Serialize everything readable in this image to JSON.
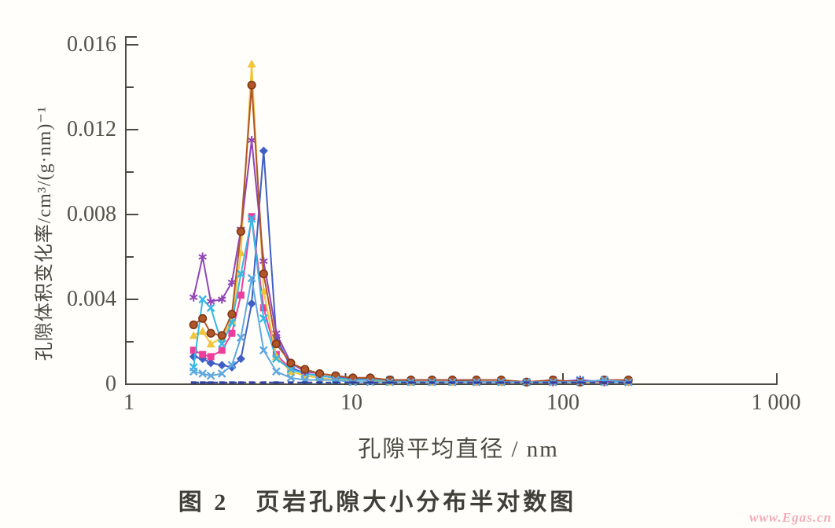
{
  "figure": {
    "caption": "图 2　页岩孔隙大小分布半对数图"
  },
  "watermark": {
    "text": "www.Egas.cn",
    "color": "#f3aab6"
  },
  "chart_data": {
    "type": "line",
    "title": "",
    "xlabel": "孔隙平均直径 / nm",
    "ylabel": "孔隙体积变化率/cm³/(g·nm)⁻¹",
    "x_scale": "log",
    "xlim": [
      1,
      1000
    ],
    "ylim": [
      0,
      0.016
    ],
    "grid": false,
    "legend_position": "none",
    "xtick_values": [
      1,
      10,
      100,
      1000
    ],
    "xtick_labels": [
      "1",
      "10",
      "100",
      "1 000"
    ],
    "ytick_values": [
      0,
      0.004,
      0.008,
      0.012,
      0.016
    ],
    "ytick_labels": [
      "0",
      "0.004",
      "0.008",
      "0.012",
      "0.016"
    ],
    "y_minor_ticks": [
      0.002,
      0.006,
      0.01,
      0.014
    ],
    "x_nm": [
      2.0,
      2.2,
      2.4,
      2.7,
      3.0,
      3.3,
      3.7,
      4.2,
      4.8,
      5.6,
      6.5,
      7.6,
      9.0,
      10.8,
      13,
      16,
      20,
      25,
      31,
      40,
      52,
      68,
      90,
      120,
      155,
      200
    ],
    "series": [
      {
        "id": "1",
        "marker": "diamond",
        "color": "#3f5fc5",
        "values": [
          0.0013,
          0.0012,
          0.001,
          0.0009,
          0.0008,
          0.0012,
          0.0038,
          0.011,
          0.0022,
          0.0008,
          0.0005,
          0.0004,
          0.0003,
          0.0003,
          0.0002,
          0.0002,
          0.0002,
          0.0002,
          0.0002,
          0.0001,
          0.0001,
          0.0001,
          0.0001,
          0.0001,
          0.0001,
          0.0001
        ]
      },
      {
        "id": "2",
        "marker": "square",
        "color": "#ec3f9c",
        "values": [
          0.0016,
          0.0014,
          0.0013,
          0.0016,
          0.0024,
          0.0042,
          0.0079,
          0.0036,
          0.0014,
          0.0007,
          0.0005,
          0.0004,
          0.0003,
          0.0002,
          0.0002,
          0.0002,
          0.0001,
          0.0001,
          0.0001,
          0.0001,
          0.0001,
          0.0001,
          0.0002,
          0.0001,
          0.0001,
          0.0001
        ]
      },
      {
        "id": "3",
        "marker": "triangle",
        "color": "#f0c53c",
        "values": [
          0.0023,
          0.0025,
          0.0019,
          0.0022,
          0.003,
          0.0062,
          0.0151,
          0.0044,
          0.0013,
          0.0006,
          0.0004,
          0.0003,
          0.0002,
          0.0002,
          0.0002,
          0.0001,
          0.0001,
          0.0001,
          0.0001,
          0.0001,
          0.0001,
          0.0001,
          0.0001,
          0.0001,
          0.0001,
          0.0001
        ]
      },
      {
        "id": "4",
        "marker": "x",
        "color": "#35b9e6",
        "values": [
          0.0008,
          0.004,
          0.0036,
          0.0019,
          0.0029,
          0.0052,
          0.0078,
          0.0031,
          0.0012,
          0.0007,
          0.0005,
          0.0004,
          0.0003,
          0.0002,
          0.0002,
          0.0002,
          0.0001,
          0.0001,
          0.0001,
          0.0001,
          0.0001,
          0.0001,
          0.0001,
          0.0002,
          0.0001,
          0.0001
        ]
      },
      {
        "id": "5",
        "marker": "asterisk",
        "color": "#9044b8",
        "values": [
          0.0041,
          0.006,
          0.0039,
          0.004,
          0.0048,
          0.0073,
          0.0115,
          0.0058,
          0.0024,
          0.001,
          0.0006,
          0.0005,
          0.0004,
          0.0003,
          0.0003,
          0.0002,
          0.0002,
          0.0002,
          0.0002,
          0.0002,
          0.0002,
          0.0001,
          0.0001,
          0.0002,
          0.0001,
          0.0002
        ]
      },
      {
        "id": "6",
        "marker": "circle",
        "color": "#b05628",
        "edge": "#7e3414",
        "values": [
          0.0028,
          0.0031,
          0.0024,
          0.0023,
          0.0033,
          0.0072,
          0.0141,
          0.0052,
          0.0019,
          0.001,
          0.0007,
          0.0005,
          0.0004,
          0.0003,
          0.0003,
          0.0002,
          0.0002,
          0.0002,
          0.0002,
          0.0002,
          0.0002,
          0.0001,
          0.0002,
          0.0001,
          0.0002,
          0.0002
        ]
      },
      {
        "id": "7",
        "marker": "x",
        "color": "#5fa8e0",
        "values": [
          0.0006,
          0.0005,
          0.0004,
          0.0005,
          0.0009,
          0.0022,
          0.005,
          0.0016,
          0.0006,
          0.0003,
          0.0002,
          0.0002,
          0.0002,
          0.0001,
          0.0001,
          0.0001,
          0.0001,
          0.0001,
          0.0001,
          0.0001,
          0.0001,
          0.0001,
          0.0001,
          0.0001,
          0.0002,
          0.0001
        ]
      },
      {
        "id": "8",
        "marker": "dash",
        "color": "#2f3f9f",
        "dashed": true,
        "values": [
          8e-05,
          8e-05,
          8e-05,
          8e-05,
          8e-05,
          8e-05,
          8e-05,
          8e-05,
          8e-05,
          8e-05,
          8e-05,
          8e-05,
          8e-05,
          8e-05,
          8e-05,
          8e-05,
          8e-05,
          8e-05,
          8e-05,
          8e-05,
          8e-05,
          8e-05,
          8e-05,
          8e-05,
          8e-05,
          8e-05
        ]
      }
    ]
  }
}
